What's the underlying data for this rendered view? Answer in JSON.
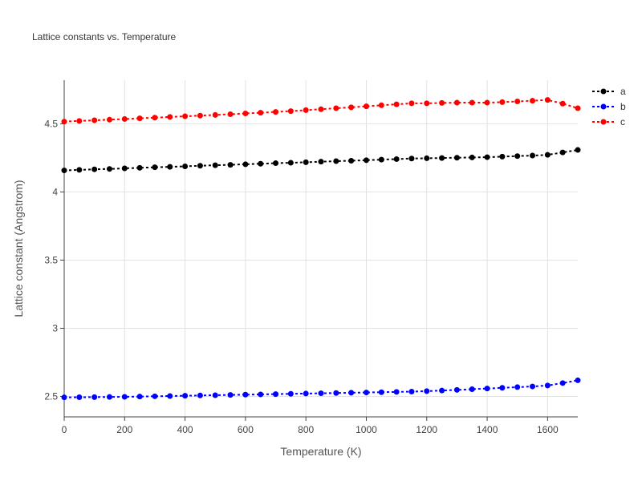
{
  "chart_data": {
    "type": "line",
    "title": "Lattice constants vs. Temperature",
    "xlabel": "Temperature (K)",
    "ylabel": "Lattice constant (Angstrom)",
    "xlim": [
      0,
      1700
    ],
    "ylim": [
      2.35,
      4.82
    ],
    "xticks": [
      0,
      200,
      400,
      600,
      800,
      1000,
      1200,
      1400,
      1600
    ],
    "yticks": [
      2.5,
      3,
      3.5,
      4,
      4.5
    ],
    "grid": true,
    "legend_position": "top-right",
    "x": [
      0,
      50,
      100,
      150,
      200,
      250,
      300,
      350,
      400,
      450,
      500,
      550,
      600,
      650,
      700,
      750,
      800,
      850,
      900,
      950,
      1000,
      1050,
      1100,
      1150,
      1200,
      1250,
      1300,
      1350,
      1400,
      1450,
      1500,
      1550,
      1600,
      1650,
      1700
    ],
    "series": [
      {
        "name": "a",
        "color": "#000000",
        "values": [
          4.158,
          4.162,
          4.166,
          4.169,
          4.173,
          4.177,
          4.181,
          4.184,
          4.188,
          4.192,
          4.196,
          4.199,
          4.203,
          4.207,
          4.211,
          4.214,
          4.218,
          4.222,
          4.226,
          4.229,
          4.233,
          4.237,
          4.241,
          4.245,
          4.247,
          4.249,
          4.251,
          4.253,
          4.255,
          4.259,
          4.263,
          4.267,
          4.272,
          4.29,
          4.308
        ]
      },
      {
        "name": "b",
        "color": "#0000ff",
        "values": [
          2.493,
          2.494,
          2.495,
          2.496,
          2.497,
          2.499,
          2.501,
          2.503,
          2.505,
          2.507,
          2.509,
          2.511,
          2.513,
          2.515,
          2.517,
          2.519,
          2.521,
          2.523,
          2.525,
          2.527,
          2.529,
          2.531,
          2.533,
          2.535,
          2.539,
          2.543,
          2.548,
          2.553,
          2.558,
          2.563,
          2.568,
          2.573,
          2.58,
          2.598,
          2.618
        ]
      },
      {
        "name": "c",
        "color": "#ff0000",
        "values": [
          4.516,
          4.521,
          4.526,
          4.53,
          4.535,
          4.54,
          4.545,
          4.55,
          4.555,
          4.56,
          4.565,
          4.57,
          4.576,
          4.581,
          4.587,
          4.593,
          4.6,
          4.607,
          4.614,
          4.621,
          4.628,
          4.636,
          4.643,
          4.65,
          4.65,
          4.653,
          4.655,
          4.655,
          4.655,
          4.659,
          4.664,
          4.669,
          4.675,
          4.648,
          4.614
        ]
      }
    ]
  }
}
